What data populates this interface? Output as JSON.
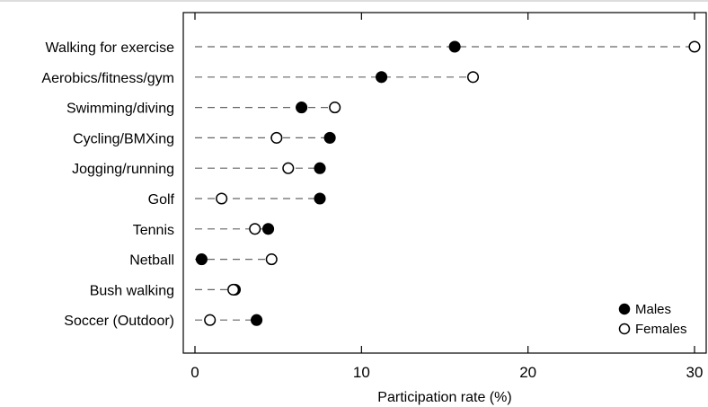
{
  "chart_data": {
    "type": "dot",
    "title": "",
    "xlabel": "Participation rate (%)",
    "ylabel": "",
    "xlim": [
      0,
      30
    ],
    "xticks": [
      0,
      10,
      20,
      30
    ],
    "xtick_labels": [
      "0",
      "10",
      "20",
      "30"
    ],
    "grid": false,
    "legend_position": "bottom-right",
    "categories": [
      "Walking for exercise",
      "Aerobics/fitness/gym",
      "Swimming/diving",
      "Cycling/BMXing",
      "Jogging/running",
      "Golf",
      "Tennis",
      "Netball",
      "Bush walking",
      "Soccer (Outdoor)"
    ],
    "series": [
      {
        "name": "Males",
        "marker": "filled-circle",
        "color": "#000000",
        "values": [
          15.6,
          11.2,
          6.4,
          8.1,
          7.5,
          7.5,
          4.4,
          0.4,
          2.4,
          3.7
        ]
      },
      {
        "name": "Females",
        "marker": "open-circle",
        "color": "#000000",
        "values": [
          30.0,
          16.7,
          8.4,
          4.9,
          5.6,
          1.6,
          3.6,
          4.6,
          2.3,
          0.9
        ]
      }
    ]
  }
}
